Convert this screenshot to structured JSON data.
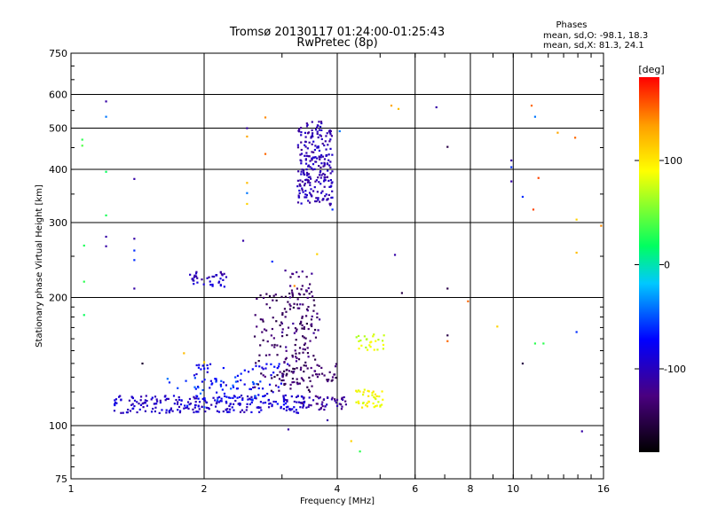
{
  "chart_data": {
    "type": "scatter",
    "title": "Tromsø 20130117 01:24:00-01:25:43",
    "subtitle": "RwPretec (8p)",
    "xlabel": "Frequency [MHz]",
    "ylabel": "Stationary phase Virtual Height [km]",
    "xscale": "log",
    "yscale": "log",
    "xlim": [
      1,
      16
    ],
    "ylim": [
      75,
      750
    ],
    "x_ticks": [
      1,
      2,
      4,
      6,
      8,
      10,
      16
    ],
    "x_tick_labels": [
      "1",
      "2",
      "4",
      "6",
      "8",
      "10",
      "16"
    ],
    "x_gridlines": [
      2,
      4,
      6,
      8,
      10
    ],
    "y_ticks": [
      75,
      100,
      200,
      300,
      400,
      500,
      600,
      750
    ],
    "y_tick_labels": [
      "75",
      "100",
      "200",
      "300",
      "400",
      "500",
      "600",
      "750"
    ],
    "y_gridlines": [
      100,
      200,
      300,
      400,
      500,
      600
    ],
    "grid": true,
    "legend": {
      "title": "Phases",
      "lines": [
        "mean, sd,O: -98.1, 18.3",
        "mean, sd,X:  81.3, 24.1"
      ],
      "placement": "top-right"
    },
    "colorbar": {
      "label": "[deg]",
      "range": [
        -180,
        180
      ],
      "ticks": [
        100,
        0,
        -100
      ],
      "tick_labels": [
        "100",
        "0",
        "-100"
      ],
      "colormap": "rainbow"
    },
    "clusters": [
      {
        "name": "E-trace",
        "x": [
          1.25,
          3.5
        ],
        "y": [
          107,
          118
        ],
        "phase": -95,
        "n": 240
      },
      {
        "name": "E-trace-X",
        "x": [
          3.3,
          4.2
        ],
        "y": [
          109,
          118
        ],
        "phase": -115,
        "n": 45
      },
      {
        "name": "Es-spread",
        "x": [
          1.9,
          3.1
        ],
        "y": [
          112,
          140
        ],
        "phase": -80,
        "n": 90
      },
      {
        "name": "Es-cyan",
        "x": [
          1.6,
          2.8
        ],
        "y": [
          110,
          130
        ],
        "phase": -55,
        "n": 30
      },
      {
        "name": "Rising-arc",
        "x": [
          2.6,
          3.6
        ],
        "y": [
          120,
          210
        ],
        "phase": -140,
        "n": 130
      },
      {
        "name": "Upper-arc",
        "x": [
          3.0,
          3.65
        ],
        "y": [
          125,
          232
        ],
        "phase": -130,
        "n": 80
      },
      {
        "name": "Mid-layer",
        "x": [
          3.0,
          4.0
        ],
        "y": [
          125,
          140
        ],
        "phase": -135,
        "n": 40
      },
      {
        "name": "F-column",
        "x": [
          3.25,
          3.9
        ],
        "y": [
          330,
          520
        ],
        "phase": -105,
        "n": 240
      },
      {
        "name": "Sporadic-2.2MHz",
        "x": [
          1.85,
          2.25
        ],
        "y": [
          212,
          230
        ],
        "phase": -100,
        "n": 40
      },
      {
        "name": "X-yellow-lower",
        "x": [
          4.4,
          5.1
        ],
        "y": [
          110,
          122
        ],
        "phase": 90,
        "n": 40
      },
      {
        "name": "X-yellow-upper",
        "x": [
          4.4,
          5.1
        ],
        "y": [
          150,
          165
        ],
        "phase": 80,
        "n": 25
      }
    ],
    "scattered_points": [
      {
        "x": 1.06,
        "y": 470,
        "phase": 30
      },
      {
        "x": 1.06,
        "y": 455,
        "phase": 40
      },
      {
        "x": 1.07,
        "y": 265,
        "phase": 25
      },
      {
        "x": 1.07,
        "y": 218,
        "phase": 30
      },
      {
        "x": 1.07,
        "y": 182,
        "phase": 20
      },
      {
        "x": 1.2,
        "y": 578,
        "phase": -110
      },
      {
        "x": 1.2,
        "y": 532,
        "phase": -40
      },
      {
        "x": 1.2,
        "y": 395,
        "phase": 20
      },
      {
        "x": 1.2,
        "y": 312,
        "phase": 25
      },
      {
        "x": 1.2,
        "y": 278,
        "phase": -110
      },
      {
        "x": 1.2,
        "y": 264,
        "phase": -110
      },
      {
        "x": 1.39,
        "y": 380,
        "phase": -110
      },
      {
        "x": 1.39,
        "y": 275,
        "phase": -110
      },
      {
        "x": 1.39,
        "y": 258,
        "phase": -60
      },
      {
        "x": 1.39,
        "y": 245,
        "phase": -60
      },
      {
        "x": 1.39,
        "y": 210,
        "phase": -110
      },
      {
        "x": 2.5,
        "y": 500,
        "phase": -110
      },
      {
        "x": 2.5,
        "y": 478,
        "phase": 130
      },
      {
        "x": 2.5,
        "y": 372,
        "phase": 120
      },
      {
        "x": 2.5,
        "y": 352,
        "phase": -40
      },
      {
        "x": 2.5,
        "y": 332,
        "phase": 110
      },
      {
        "x": 2.45,
        "y": 272,
        "phase": -110
      },
      {
        "x": 2.75,
        "y": 530,
        "phase": 140
      },
      {
        "x": 2.75,
        "y": 435,
        "phase": 150
      },
      {
        "x": 2.85,
        "y": 243,
        "phase": -60
      },
      {
        "x": 4.05,
        "y": 492,
        "phase": -40
      },
      {
        "x": 3.9,
        "y": 322,
        "phase": -60
      },
      {
        "x": 3.6,
        "y": 253,
        "phase": 110
      },
      {
        "x": 5.3,
        "y": 565,
        "phase": 130
      },
      {
        "x": 5.5,
        "y": 555,
        "phase": 120
      },
      {
        "x": 5.4,
        "y": 252,
        "phase": -110
      },
      {
        "x": 5.6,
        "y": 205,
        "phase": -150
      },
      {
        "x": 6.7,
        "y": 560,
        "phase": -110
      },
      {
        "x": 7.1,
        "y": 452,
        "phase": -150
      },
      {
        "x": 7.1,
        "y": 210,
        "phase": -150
      },
      {
        "x": 7.1,
        "y": 163,
        "phase": -150
      },
      {
        "x": 7.1,
        "y": 158,
        "phase": 150
      },
      {
        "x": 7.9,
        "y": 196,
        "phase": 150
      },
      {
        "x": 9.2,
        "y": 171,
        "phase": 110
      },
      {
        "x": 9.9,
        "y": 420,
        "phase": -110
      },
      {
        "x": 9.9,
        "y": 405,
        "phase": -60
      },
      {
        "x": 9.9,
        "y": 375,
        "phase": -110
      },
      {
        "x": 10.5,
        "y": 345,
        "phase": -60
      },
      {
        "x": 10.5,
        "y": 140,
        "phase": -150
      },
      {
        "x": 11,
        "y": 565,
        "phase": 150
      },
      {
        "x": 11.2,
        "y": 532,
        "phase": -40
      },
      {
        "x": 11.1,
        "y": 322,
        "phase": 160
      },
      {
        "x": 11.4,
        "y": 382,
        "phase": 160
      },
      {
        "x": 11.2,
        "y": 156,
        "phase": 30
      },
      {
        "x": 11.7,
        "y": 156,
        "phase": 30
      },
      {
        "x": 12.6,
        "y": 488,
        "phase": 130
      },
      {
        "x": 13.8,
        "y": 475,
        "phase": 150
      },
      {
        "x": 13.9,
        "y": 305,
        "phase": 110
      },
      {
        "x": 13.9,
        "y": 255,
        "phase": 120
      },
      {
        "x": 13.9,
        "y": 166,
        "phase": -60
      },
      {
        "x": 14.3,
        "y": 97,
        "phase": -110
      },
      {
        "x": 15.8,
        "y": 295,
        "phase": 140
      },
      {
        "x": 3.2,
        "y": 213,
        "phase": 140
      },
      {
        "x": 4.3,
        "y": 92,
        "phase": 110
      },
      {
        "x": 4.5,
        "y": 87,
        "phase": 30
      },
      {
        "x": 3.1,
        "y": 98,
        "phase": -110
      },
      {
        "x": 3.8,
        "y": 103,
        "phase": -110
      },
      {
        "x": 1.8,
        "y": 148,
        "phase": 120
      },
      {
        "x": 2.0,
        "y": 141,
        "phase": 110
      },
      {
        "x": 1.45,
        "y": 140,
        "phase": -160
      }
    ]
  }
}
